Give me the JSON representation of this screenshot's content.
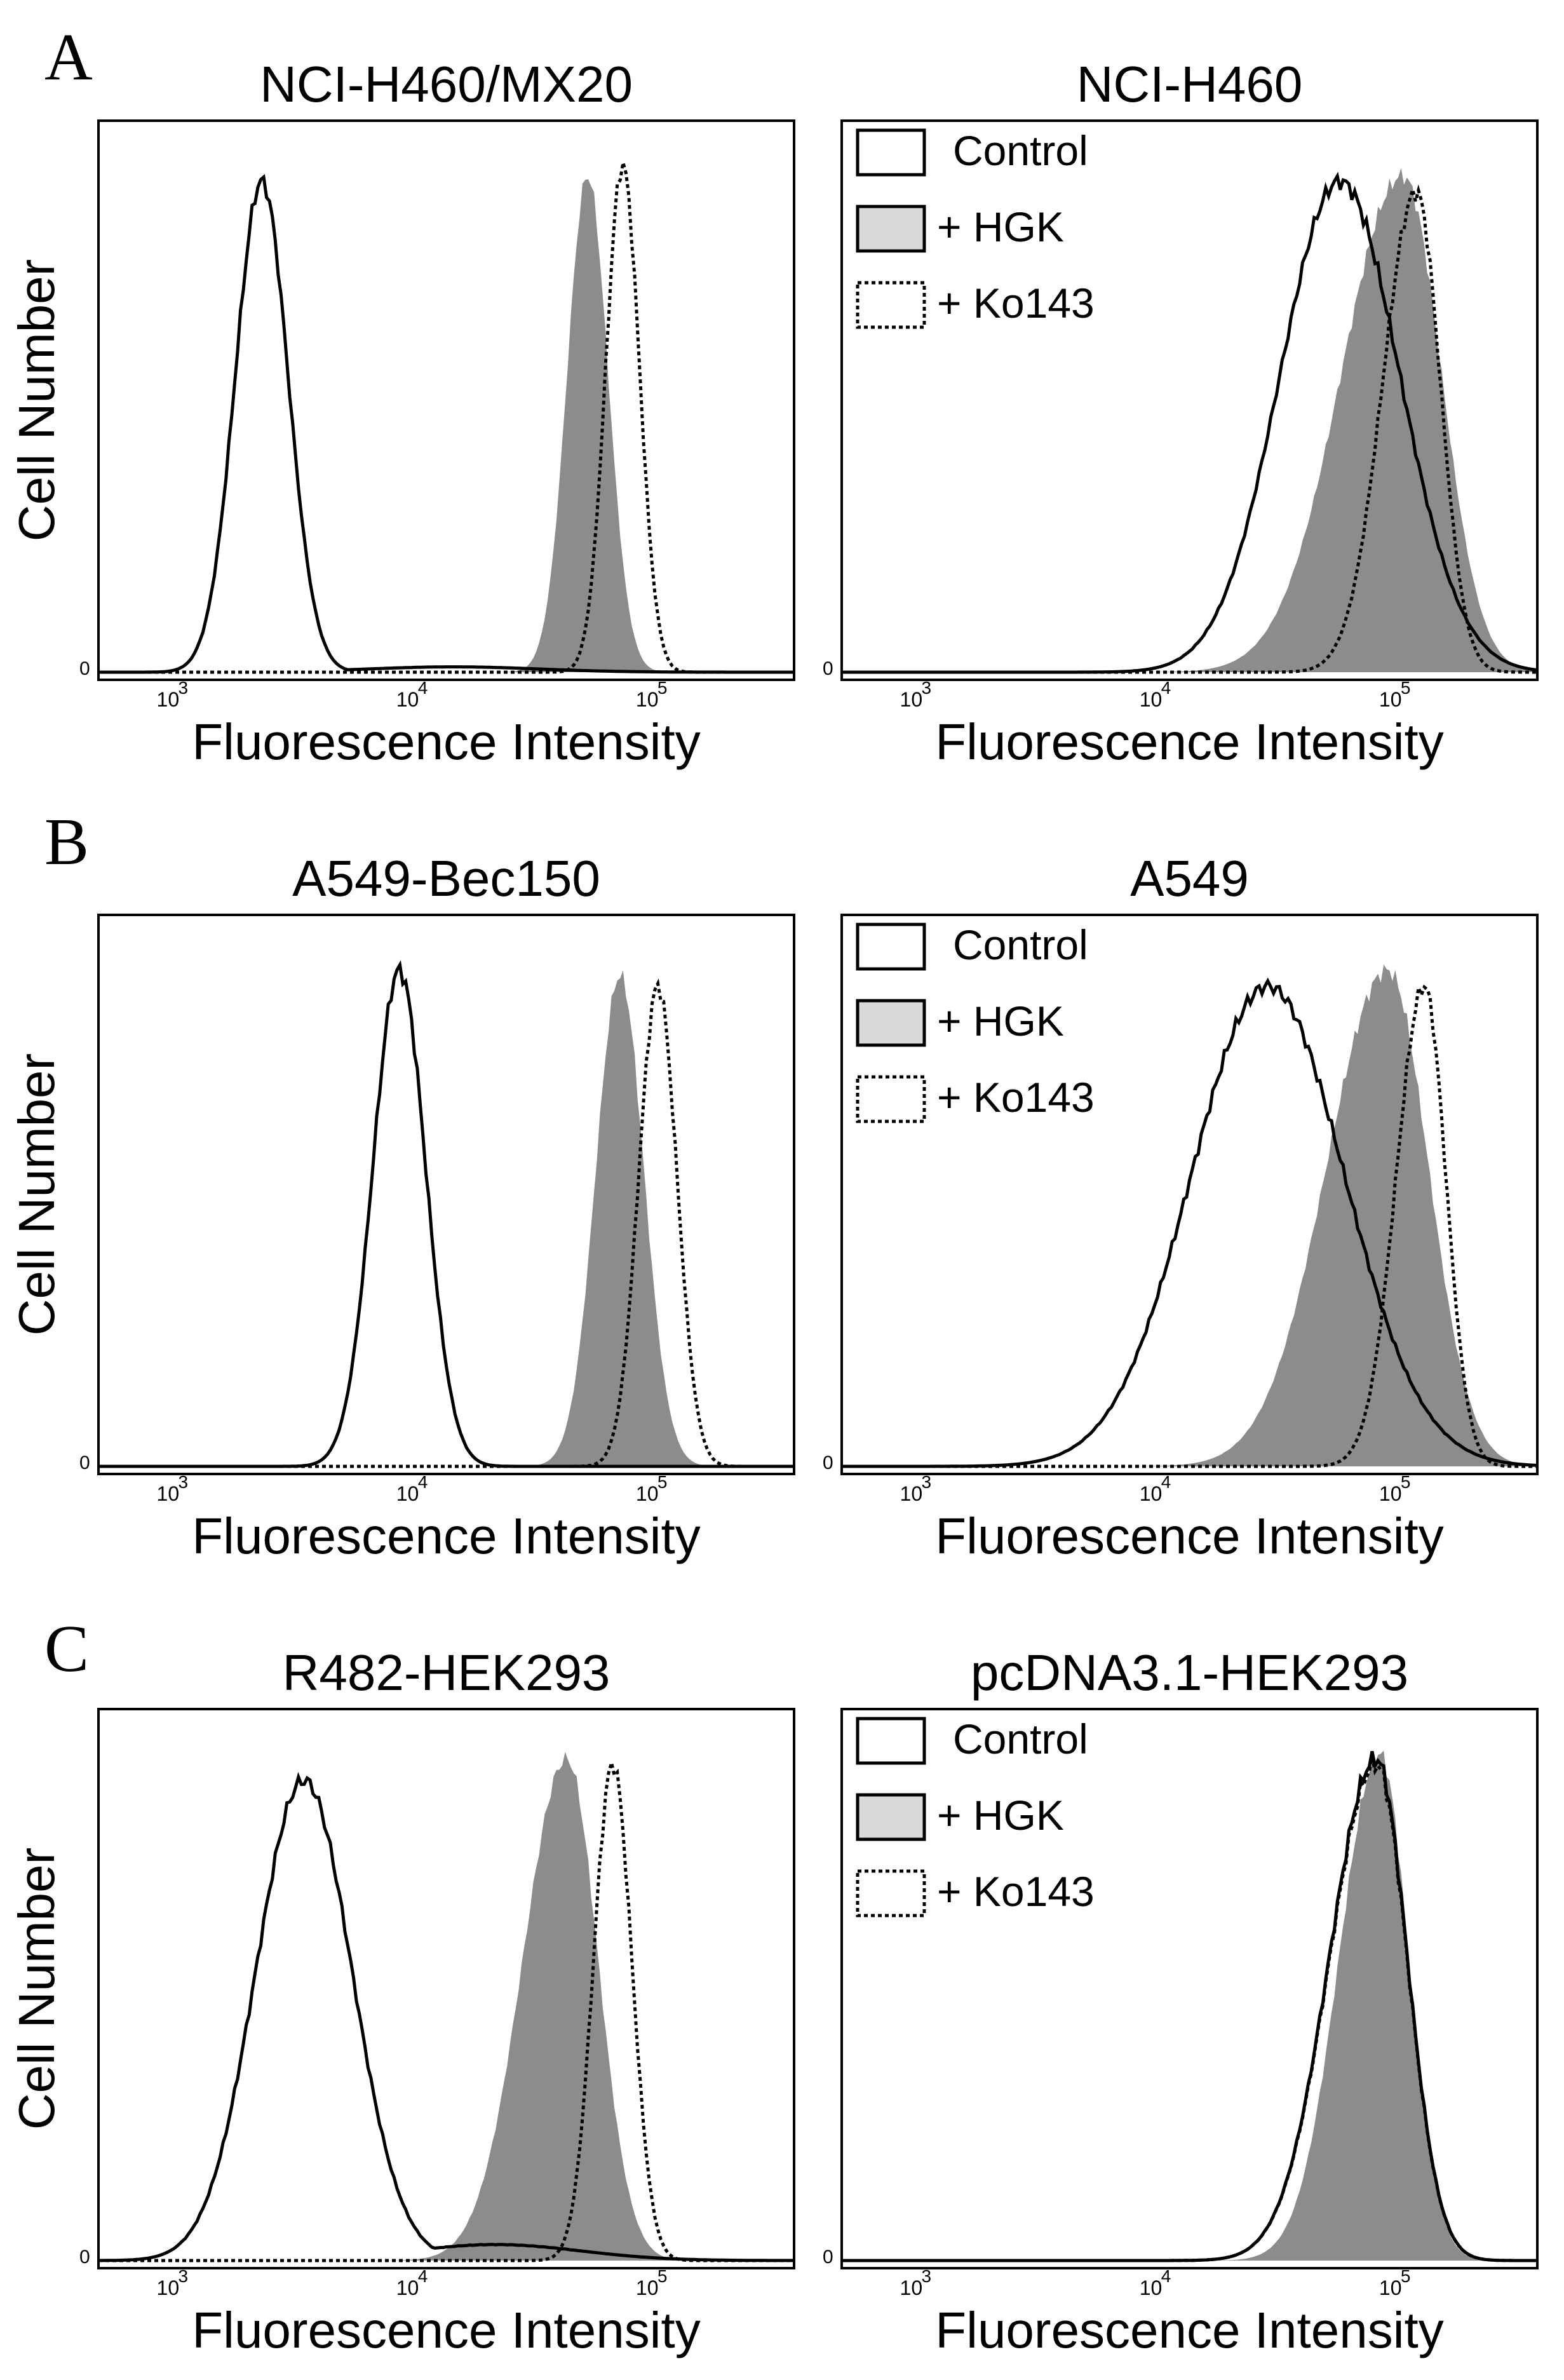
{
  "figure": {
    "row_labels": [
      "A",
      "B",
      "C"
    ],
    "x_axis_label": "Fluorescence Intensity",
    "y_axis_label": "Cell Number",
    "legend": {
      "entries": [
        {
          "label": "Control",
          "style": "white-solid"
        },
        {
          "label": "+ HGK",
          "style": "gray-filled"
        },
        {
          "label": "+ Ko143",
          "style": "white-dotted"
        }
      ]
    },
    "colors": {
      "fill": "#8c8c8c",
      "legend_fill": "#d9d9d9",
      "line": "#000000"
    }
  },
  "chart_data": [
    {
      "type": "histogram",
      "title": "NCI-H460/MX20",
      "xscale": "log",
      "xlim": [
        500,
        400000
      ],
      "xticks": [
        "0",
        "10",
        "3",
        "10",
        "4",
        "10",
        "5"
      ],
      "ylabel": "Cell Number",
      "xlabel": "Fluorescence Intensity",
      "legend": false,
      "series": [
        {
          "name": "Control",
          "style": "solid",
          "center": 2400,
          "width": 0.11,
          "peak": 0.92,
          "skew": 0.0,
          "tail": 0.01
        },
        {
          "name": "+ HGK",
          "style": "filled",
          "center": 55000,
          "width": 0.085,
          "peak": 0.93,
          "skew": 0.0
        },
        {
          "name": "+ Ko143",
          "style": "dotted",
          "center": 77000,
          "width": 0.07,
          "peak": 0.95,
          "skew": 0.0
        }
      ]
    },
    {
      "type": "histogram",
      "title": "NCI-H460",
      "xscale": "log",
      "xlim": [
        500,
        400000
      ],
      "xticks": [
        "0",
        "10",
        "3",
        "10",
        "4",
        "10",
        "5"
      ],
      "ylabel": "",
      "xlabel": "Fluorescence Intensity",
      "legend": true,
      "series": [
        {
          "name": "Control",
          "style": "solid",
          "center": 60000,
          "width": 0.25,
          "peak": 0.92,
          "skew": 0.0
        },
        {
          "name": "+ HGK",
          "style": "filled",
          "center": 110000,
          "width": 0.16,
          "peak": 0.93,
          "skew": -0.6
        },
        {
          "name": "+ Ko143",
          "style": "dotted",
          "center": 125000,
          "width": 0.1,
          "peak": 0.9,
          "skew": -0.4
        }
      ]
    },
    {
      "type": "histogram",
      "title": "A549-Bec150",
      "xscale": "log",
      "xlim": [
        500,
        400000
      ],
      "xticks": [
        "0",
        "10",
        "3",
        "10",
        "4",
        "10",
        "5"
      ],
      "ylabel": "Cell Number",
      "xlabel": "Fluorescence Intensity",
      "legend": false,
      "series": [
        {
          "name": "Control",
          "style": "solid",
          "center": 9000,
          "width": 0.11,
          "peak": 0.93,
          "skew": 0.0
        },
        {
          "name": "+ HGK",
          "style": "filled",
          "center": 75000,
          "width": 0.1,
          "peak": 0.92,
          "skew": 0.0
        },
        {
          "name": "+ Ko143",
          "style": "dotted",
          "center": 108000,
          "width": 0.08,
          "peak": 0.9,
          "skew": 0.0
        }
      ]
    },
    {
      "type": "histogram",
      "title": "A549",
      "xscale": "log",
      "xlim": [
        500,
        400000
      ],
      "xticks": [
        "0",
        "10",
        "3",
        "10",
        "4",
        "10",
        "5"
      ],
      "ylabel": "",
      "xlabel": "Fluorescence Intensity",
      "legend": true,
      "series": [
        {
          "name": "Control",
          "style": "solid",
          "center": 30000,
          "width": 0.32,
          "peak": 0.9,
          "skew": 0.0
        },
        {
          "name": "+ HGK",
          "style": "filled",
          "center": 95000,
          "width": 0.17,
          "peak": 0.93,
          "skew": -0.5
        },
        {
          "name": "+ Ko143",
          "style": "dotted",
          "center": 135000,
          "width": 0.09,
          "peak": 0.9,
          "skew": -0.3
        }
      ]
    },
    {
      "type": "histogram",
      "title": "R482-HEK293",
      "xscale": "log",
      "xlim": [
        500,
        400000
      ],
      "xticks": [
        "0",
        "10",
        "3",
        "10",
        "4",
        "10",
        "5"
      ],
      "ylabel": "Cell Number",
      "xlabel": "Fluorescence Intensity",
      "legend": false,
      "series": [
        {
          "name": "Control",
          "style": "solid",
          "center": 3600,
          "width": 0.2,
          "peak": 0.9,
          "skew": 0.0,
          "tail": 0.03
        },
        {
          "name": "+ HGK",
          "style": "filled",
          "center": 45000,
          "width": 0.13,
          "peak": 0.94,
          "skew": -0.4
        },
        {
          "name": "+ Ko143",
          "style": "dotted",
          "center": 70000,
          "width": 0.08,
          "peak": 0.93,
          "skew": 0.0
        }
      ]
    },
    {
      "type": "histogram",
      "title": "pcDNA3.1-HEK293",
      "xscale": "log",
      "xlim": [
        500,
        400000
      ],
      "xticks": [
        "0",
        "10",
        "3",
        "10",
        "4",
        "10",
        "5"
      ],
      "ylabel": "",
      "xlabel": "Fluorescence Intensity",
      "legend": true,
      "series": [
        {
          "name": "Control",
          "style": "solid",
          "center": 85000,
          "width": 0.13,
          "peak": 0.94,
          "skew": -0.5
        },
        {
          "name": "+ HGK",
          "style": "filled",
          "center": 88000,
          "width": 0.12,
          "peak": 0.95,
          "skew": -0.4
        },
        {
          "name": "+ Ko143",
          "style": "dotted",
          "center": 85000,
          "width": 0.13,
          "peak": 0.93,
          "skew": -0.5
        }
      ]
    }
  ]
}
